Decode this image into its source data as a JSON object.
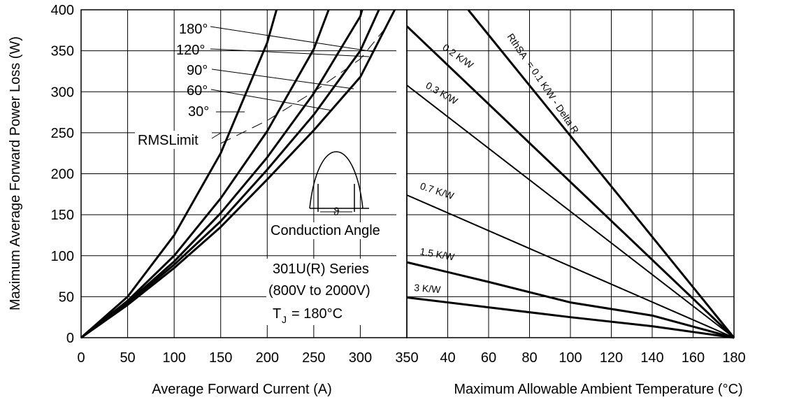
{
  "chart_data": [
    {
      "type": "line",
      "xlabel": "Average Forward Current (A)",
      "ylabel": "Maximum Average Forward Power Loss (W)",
      "xlim": [
        0,
        350
      ],
      "ylim": [
        0,
        400
      ],
      "grid": true,
      "x_ticks": [
        "0",
        "50",
        "100",
        "150",
        "200",
        "250",
        "300",
        "350"
      ],
      "y_ticks": [
        "0",
        "50",
        "100",
        "150",
        "200",
        "250",
        "300",
        "350",
        "400"
      ],
      "series": [
        {
          "name": "180°",
          "x": [
            0,
            50,
            100,
            150,
            200,
            210
          ],
          "y": [
            0,
            50,
            125,
            225,
            360,
            400
          ]
        },
        {
          "name": "120°",
          "x": [
            0,
            50,
            100,
            150,
            200,
            250,
            266
          ],
          "y": [
            0,
            45,
            100,
            170,
            252,
            352,
            400
          ]
        },
        {
          "name": "90°",
          "x": [
            0,
            50,
            100,
            150,
            200,
            250,
            300,
            302
          ],
          "y": [
            0,
            43,
            93,
            152,
            220,
            298,
            392,
            400
          ]
        },
        {
          "name": "60°",
          "x": [
            0,
            50,
            100,
            150,
            200,
            250,
            300,
            320
          ],
          "y": [
            0,
            42,
            89,
            142,
            205,
            272,
            350,
            400
          ]
        },
        {
          "name": "30°",
          "x": [
            0,
            50,
            100,
            150,
            200,
            250,
            300,
            337
          ],
          "y": [
            0,
            40,
            85,
            135,
            193,
            253,
            318,
            400
          ]
        },
        {
          "name": "RMS Limit",
          "dashed": true,
          "x": [
            150,
            200,
            250,
            300,
            325
          ],
          "y": [
            237,
            265,
            300,
            340,
            375
          ]
        }
      ],
      "annotations": [
        {
          "text": "180°"
        },
        {
          "text": "120°"
        },
        {
          "text": "90°"
        },
        {
          "text": "60°"
        },
        {
          "text": "30°"
        },
        {
          "text": "RMSLimit"
        },
        {
          "text": "Conduction Angle"
        },
        {
          "text": "301U(R) Series"
        },
        {
          "text": "(800V to 2000V)"
        },
        {
          "text": "T"
        },
        {
          "text": "J"
        },
        {
          "text": "= 180°C"
        },
        {
          "text": "ϑ"
        }
      ]
    },
    {
      "type": "line",
      "xlabel": "Maximum Allowable Ambient Temperature (°C)",
      "xlim": [
        20,
        180
      ],
      "ylim": [
        0,
        400
      ],
      "grid": true,
      "x_ticks": [
        "40",
        "60",
        "80",
        "100",
        "120",
        "140",
        "160",
        "180"
      ],
      "series": [
        {
          "name": "RthSA = 0.1 K/W - Delta R",
          "x": [
            50,
            180
          ],
          "y": [
            400,
            0
          ]
        },
        {
          "name": "0.2 K/W",
          "x": [
            20,
            180
          ],
          "y": [
            380,
            0
          ]
        },
        {
          "name": "0.3 K/W",
          "x": [
            20,
            180
          ],
          "y": [
            308,
            0
          ]
        },
        {
          "name": "0.7 K/W",
          "x": [
            20,
            180
          ],
          "y": [
            174,
            0
          ]
        },
        {
          "name": "1.5 K/W",
          "x": [
            20,
            60,
            100,
            140,
            180
          ],
          "y": [
            92,
            68,
            43,
            27,
            0
          ]
        },
        {
          "name": "3 K/W",
          "x": [
            20,
            60,
            100,
            140,
            180
          ],
          "y": [
            49,
            37,
            25,
            14,
            0
          ]
        }
      ],
      "line_labels": [
        "RthSA",
        "= 0.1 K/W - Delta R",
        "0.2 K/W",
        "0.3 K/W",
        "0.7 K/W",
        "1.5 K/W",
        "3 K/W"
      ]
    }
  ]
}
